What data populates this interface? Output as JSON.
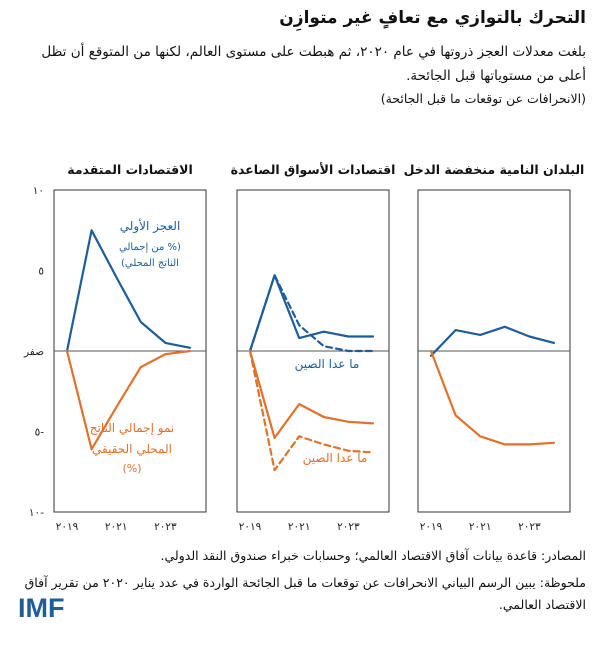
{
  "title": "التحرك بالتوازي مع تعافٍ غير متوازِن",
  "subtitle": "بلغت معدلات العجز ذروتها في عام ٢٠٢٠، ثم هبطت على مستوى العالم، لكنها من المتوقع أن تظل أعلى من مستوياتها قبل الجائحة.",
  "units": "(الانحرافات عن توقعات ما قبل الجائحة)",
  "sources": "المصادر: قاعدة بيانات آفاق الاقتصاد العالمي؛ وحسابات خبراء صندوق النقد الدولي.",
  "note": "ملحوظة: يبين الرسم البياني الانحرافات عن توقعات ما قبل الجائحة الواردة في عدد يناير ٢٠٢٠ من تقرير آفاق الاقتصاد العالمي.",
  "logo": "IMF",
  "colors": {
    "deficit": "#1f5d99",
    "growth": "#e1712b",
    "zero_line": "#555555",
    "frame": "#333333"
  },
  "chart_data": {
    "type": "line",
    "x": [
      2019,
      2020,
      2021,
      2022,
      2023,
      2024
    ],
    "x_tick_labels": [
      "٢٠١٩",
      "٢٠٢١",
      "٢٠٢٣"
    ],
    "x_tick_values": [
      2019,
      2021,
      2023
    ],
    "y_tick_labels": [
      "١٠",
      "٥",
      "صفر",
      "٥-",
      "١٠-"
    ],
    "y_tick_values": [
      10,
      5,
      0,
      -5,
      -10
    ],
    "ylim": [
      -10,
      10
    ],
    "panels": [
      {
        "title": "الاقتصادات المتقدمة",
        "series": [
          {
            "name": "العجز الأولي",
            "style": "solid",
            "color": "deficit",
            "values": [
              0,
              7.5,
              4.6,
              1.8,
              0.5,
              0.2
            ]
          },
          {
            "name": "نمو إجمالي الناتج المحلي الحقيقي",
            "style": "solid",
            "color": "growth",
            "values": [
              0,
              -6.1,
              -3.5,
              -1.0,
              -0.2,
              0.0
            ]
          }
        ],
        "annotations": [
          {
            "key": "deficit_title",
            "text": "العجز الأولي"
          },
          {
            "key": "deficit_line1",
            "text": "(% من إجمالي"
          },
          {
            "key": "deficit_line2",
            "text": "الناتج المحلي)"
          },
          {
            "key": "growth_line1",
            "text": "نمو إجمالي الناتج"
          },
          {
            "key": "growth_line2",
            "text": "المحلي الحقيقي"
          },
          {
            "key": "growth_line3",
            "text": "(%)"
          }
        ]
      },
      {
        "title": "اقتصادات الأسواق الصاعدة",
        "series": [
          {
            "name": "العجز الأولي",
            "style": "solid",
            "color": "deficit",
            "values": [
              0,
              4.7,
              0.8,
              1.2,
              0.9,
              0.9
            ]
          },
          {
            "name": "العجز الأولي ما عدا الصين",
            "style": "dashed",
            "color": "deficit",
            "values": [
              0,
              4.7,
              1.6,
              0.3,
              0.0,
              0.0
            ]
          },
          {
            "name": "نمو إجمالي الناتج المحلي الحقيقي",
            "style": "solid",
            "color": "growth",
            "values": [
              0,
              -5.4,
              -3.3,
              -4.1,
              -4.4,
              -4.5
            ]
          },
          {
            "name": "نمو إجمالي الناتج المحلي الحقيقي ما عدا الصين",
            "style": "dashed",
            "color": "growth",
            "values": [
              0,
              -7.4,
              -5.3,
              -5.8,
              -6.2,
              -6.3
            ]
          }
        ],
        "annotations": [
          {
            "key": "ex_china_deficit",
            "text": "ما عدا الصين"
          },
          {
            "key": "ex_china_growth",
            "text": "ما عدا الصين"
          }
        ]
      },
      {
        "title": "البلدان النامية منخفضة الدخل",
        "series": [
          {
            "name": "العجز الأولي",
            "style": "solid",
            "color": "deficit",
            "values": [
              -0.3,
              1.3,
              1.0,
              1.5,
              0.9,
              0.5
            ]
          },
          {
            "name": "نمو إجمالي الناتج المحلي الحقيقي",
            "style": "solid",
            "color": "growth",
            "values": [
              0,
              -4.0,
              -5.3,
              -5.8,
              -5.8,
              -5.7
            ]
          }
        ],
        "annotations": []
      }
    ]
  }
}
